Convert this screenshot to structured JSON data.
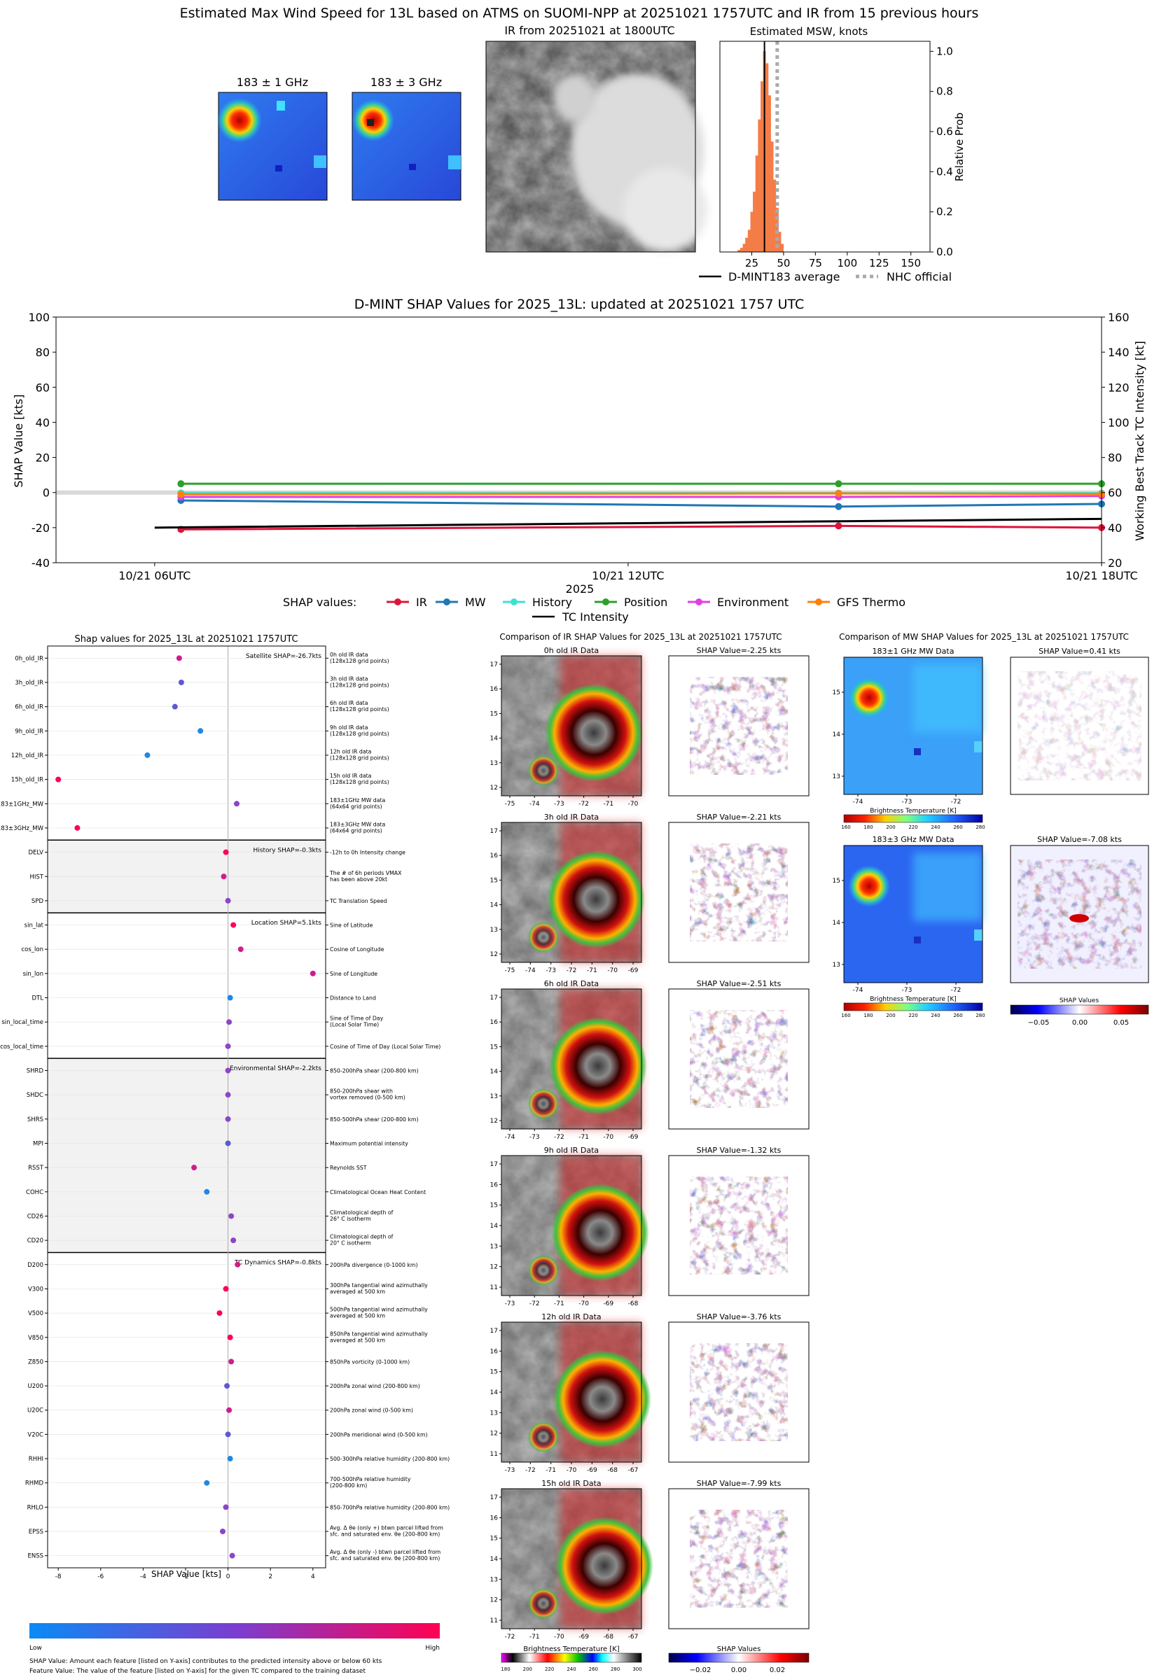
{
  "header": {
    "title": "Estimated Max Wind Speed for 13L based on ATMS on SUOMI-NPP at 20251021 1757UTC and IR from 15 previous hours",
    "mw_titles": [
      "183 ± 1 GHz",
      "183 ± 3 GHz"
    ],
    "ir_title": "IR from 20251021 at 1800UTC"
  },
  "hist": {
    "title": "Estimated MSW, knots",
    "ylabel": "Relative Prob",
    "xticks": [
      "25",
      "50",
      "75",
      "100",
      "125",
      "150"
    ],
    "yticks": [
      "0.0",
      "0.2",
      "0.4",
      "0.6",
      "0.8",
      "1.0"
    ],
    "legend": [
      "D-MINT183 average",
      "NHC official"
    ]
  },
  "chart_data": [
    {
      "type": "bar",
      "title": "Estimated MSW, knots",
      "ylabel": "Relative Prob",
      "xlim": [
        0,
        165
      ],
      "ylim": [
        0,
        1.05
      ],
      "bin_width": 2,
      "x": [
        15,
        17,
        19,
        21,
        23,
        25,
        27,
        29,
        31,
        33,
        35,
        37,
        39,
        41,
        43,
        45,
        47,
        49
      ],
      "values": [
        0.01,
        0.02,
        0.04,
        0.07,
        0.11,
        0.2,
        0.3,
        0.48,
        0.66,
        0.85,
        1.0,
        0.94,
        0.78,
        0.55,
        0.36,
        0.22,
        0.1,
        0.04
      ],
      "average": 35,
      "nhc_official": 45
    },
    {
      "type": "line",
      "title": "D-MINT SHAP Values for 2025_13L: updated at 20251021 1757 UTC",
      "xlabel": "2025",
      "ylabel": "SHAP Value [kts]",
      "y2label": "Working Best Track TC Intensity [kt]",
      "xticks": [
        "10/21 06UTC",
        "10/21 12UTC",
        "10/21 18UTC"
      ],
      "xlim": [
        4.75,
        18
      ],
      "ylim": [
        -40,
        100
      ],
      "y2lim": [
        20,
        160
      ],
      "yticks": [
        "-40",
        "-20",
        "0",
        "20",
        "40",
        "60",
        "80",
        "100"
      ],
      "y2ticks": [
        "20",
        "40",
        "60",
        "80",
        "100",
        "120",
        "140",
        "160"
      ],
      "legend_label": "SHAP values:",
      "series": [
        {
          "name": "IR",
          "color": "#dc143c",
          "x": [
            6.333,
            14.667,
            18
          ],
          "values": [
            -21,
            -19,
            -20
          ]
        },
        {
          "name": "MW",
          "color": "#1f77b4",
          "x": [
            6.333,
            14.667,
            18
          ],
          "values": [
            -4.5,
            -8,
            -6.5
          ]
        },
        {
          "name": "History",
          "color": "#40e0d0",
          "x": [
            6.333,
            14.667,
            18
          ],
          "values": [
            -0.2,
            -0.3,
            -0.3
          ]
        },
        {
          "name": "Position",
          "color": "#2ca02c",
          "x": [
            6.333,
            14.667,
            18
          ],
          "values": [
            5,
            5,
            5
          ]
        },
        {
          "name": "Environment",
          "color": "#e040e0",
          "x": [
            6.333,
            14.667,
            18
          ],
          "values": [
            -2.5,
            -2.5,
            -2
          ]
        },
        {
          "name": "GFS Thermo",
          "color": "#ff7f0e",
          "x": [
            6.333,
            14.667,
            18
          ],
          "values": [
            -1,
            -0.5,
            -0.8
          ]
        }
      ],
      "intensity": {
        "name": "TC Intensity",
        "color": "#000000",
        "x": [
          6,
          12,
          18
        ],
        "values": [
          40,
          42.5,
          45
        ]
      }
    },
    {
      "type": "scatter",
      "title": "Shap values for 2025_13L at 20251021 1757UTC",
      "xlabel": "SHAP Value [kts]",
      "xlim": [
        -8.5,
        4.6
      ],
      "xticks": [
        "-8",
        "-6",
        "-4",
        "-2",
        "0",
        "2",
        "4"
      ],
      "features": [
        {
          "name": "0h_old_IR",
          "desc": [
            "0h old IR data",
            "(128x128 grid points)"
          ],
          "value": -2.3,
          "color": "#d01c8b"
        },
        {
          "name": "3h_old_IR",
          "desc": [
            "3h old IR data",
            "(128x128 grid points)"
          ],
          "value": -2.2,
          "color": "#5e58d8"
        },
        {
          "name": "6h_old_IR",
          "desc": [
            "6h old IR data",
            "(128x128 grid points)"
          ],
          "value": -2.5,
          "color": "#5e58d8"
        },
        {
          "name": "9h_old_IR",
          "desc": [
            "9h old IR data",
            "(128x128 grid points)"
          ],
          "value": -1.3,
          "color": "#1e88e5"
        },
        {
          "name": "12h_old_IR",
          "desc": [
            "12h old IR data",
            "(128x128 grid points)"
          ],
          "value": -3.8,
          "color": "#1e88e5"
        },
        {
          "name": "15h_old_IR",
          "desc": [
            "15h old IR data",
            "(128x128 grid points)"
          ],
          "value": -8.0,
          "color": "#ff0052"
        },
        {
          "name": "183±1GHz_MW",
          "desc": [
            "183±1GHz MW data",
            "(64x64 grid points)"
          ],
          "value": 0.41,
          "color": "#8e44c8"
        },
        {
          "name": "183±3GHz_MW",
          "desc": [
            "183±3GHz MW data",
            "(64x64 grid points)"
          ],
          "value": -7.1,
          "color": "#ff0052"
        },
        {
          "name": "DELV",
          "desc": [
            "-12h to 0h Intensity change"
          ],
          "value": -0.1,
          "color": "#ff0052"
        },
        {
          "name": "HIST",
          "desc": [
            "The # of 6h periods VMAX",
            "has been above 20kt"
          ],
          "value": -0.2,
          "color": "#d01c8b"
        },
        {
          "name": "SPD",
          "desc": [
            "TC Translation Speed"
          ],
          "value": 0.0,
          "color": "#8e44c8"
        },
        {
          "name": "sin_lat",
          "desc": [
            "Sine of Latitude"
          ],
          "value": 0.25,
          "color": "#ff0052"
        },
        {
          "name": "cos_lon",
          "desc": [
            "Cosine of Longitude"
          ],
          "value": 0.6,
          "color": "#d01c8b"
        },
        {
          "name": "sin_lon",
          "desc": [
            "Sine of Longitude"
          ],
          "value": 4.0,
          "color": "#d01c8b"
        },
        {
          "name": "DTL",
          "desc": [
            "Distance to Land"
          ],
          "value": 0.1,
          "color": "#1e88e5"
        },
        {
          "name": "sin_local_time",
          "desc": [
            "Sine of Time of Day",
            "(Local Solar Time)"
          ],
          "value": 0.05,
          "color": "#8e44c8"
        },
        {
          "name": "cos_local_time",
          "desc": [
            "Cosine of Time of Day (Local Solar Time)"
          ],
          "value": 0.0,
          "color": "#8e44c8"
        },
        {
          "name": "SHRD",
          "desc": [
            "850-200hPa shear (200-800 km)"
          ],
          "value": 0.0,
          "color": "#8e44c8"
        },
        {
          "name": "SHDC",
          "desc": [
            "850-200hPa shear with",
            "vortex removed (0-500 km)"
          ],
          "value": 0.0,
          "color": "#8e44c8"
        },
        {
          "name": "SHRS",
          "desc": [
            "850-500hPa shear (200-800 km)"
          ],
          "value": 0.0,
          "color": "#8e44c8"
        },
        {
          "name": "MPI",
          "desc": [
            "Maximum potential intensity"
          ],
          "value": 0.0,
          "color": "#5e58d8"
        },
        {
          "name": "RSST",
          "desc": [
            "Reynolds SST"
          ],
          "value": -1.6,
          "color": "#d01c8b"
        },
        {
          "name": "COHC",
          "desc": [
            "Climatological Ocean Heat Content"
          ],
          "value": -1.0,
          "color": "#1e88e5"
        },
        {
          "name": "CD26",
          "desc": [
            "Climatological depth of",
            "26° C isotherm"
          ],
          "value": 0.15,
          "color": "#8e44c8"
        },
        {
          "name": "CD20",
          "desc": [
            "Climatological depth of",
            "20° C isotherm"
          ],
          "value": 0.25,
          "color": "#8e44c8"
        },
        {
          "name": "D200",
          "desc": [
            "200hPa divergence (0-1000 km)"
          ],
          "value": 0.45,
          "color": "#d01c8b"
        },
        {
          "name": "V300",
          "desc": [
            "300hPa tangential wind azimuthally",
            "averaged at 500 km"
          ],
          "value": -0.1,
          "color": "#ff0052"
        },
        {
          "name": "V500",
          "desc": [
            "500hPa tangential wind azimuthally",
            "averaged at 500 km"
          ],
          "value": -0.4,
          "color": "#ff0052"
        },
        {
          "name": "V850",
          "desc": [
            "850hPa tangential wind azimuthally",
            "averaged at 500 km"
          ],
          "value": 0.1,
          "color": "#ff0052"
        },
        {
          "name": "Z850",
          "desc": [
            "850hPa vorticity (0-1000 km)"
          ],
          "value": 0.15,
          "color": "#d01c8b"
        },
        {
          "name": "U200",
          "desc": [
            "200hPa zonal wind (200-800 km)"
          ],
          "value": -0.05,
          "color": "#5e58d8"
        },
        {
          "name": "U20C",
          "desc": [
            "200hPa zonal wind (0-500 km)"
          ],
          "value": 0.05,
          "color": "#d01c8b"
        },
        {
          "name": "V20C",
          "desc": [
            "200hPa meridional wind (0-500 km)"
          ],
          "value": 0.0,
          "color": "#5e58d8"
        },
        {
          "name": "RHHI",
          "desc": [
            "500-300hPa relative humidity (200-800 km)"
          ],
          "value": 0.1,
          "color": "#1e88e5"
        },
        {
          "name": "RHMD",
          "desc": [
            "700-500hPa relative humidity",
            "(200-800 km)"
          ],
          "value": -1.0,
          "color": "#1e88e5"
        },
        {
          "name": "RHLO",
          "desc": [
            "850-700hPa relative humidity (200-800 km)"
          ],
          "value": -0.1,
          "color": "#8e44c8"
        },
        {
          "name": "EPSS",
          "desc": [
            "Avg. Δ θe (only +) btwn parcel lifted from",
            "sfc. and saturated env. θe (200-800 km)"
          ],
          "value": -0.25,
          "color": "#8e44c8"
        },
        {
          "name": "ENSS",
          "desc": [
            "Avg. Δ θe (only -) btwn parcel lifted from",
            "sfc. and saturated env. θe (200-800 km)"
          ],
          "value": 0.2,
          "color": "#8e44c8"
        }
      ],
      "groups": [
        {
          "label": "Satellite SHAP=-26.7kts",
          "start": 0,
          "end": 7,
          "shaded": false
        },
        {
          "label": "History SHAP=-0.3kts",
          "start": 8,
          "end": 10,
          "shaded": true
        },
        {
          "label": "Location SHAP=5.1kts",
          "start": 11,
          "end": 16,
          "shaded": false
        },
        {
          "label": "Environmental SHAP=-2.2kts",
          "start": 17,
          "end": 24,
          "shaded": true
        },
        {
          "label": "TC Dynamics SHAP=-0.8kts",
          "start": 25,
          "end": 37,
          "shaded": false
        }
      ]
    }
  ],
  "shap_bottom": {
    "colorbar_low": "Low",
    "colorbar_high": "High",
    "note1": "SHAP Value: Amount each feature [listed on Y-axis] contributes to the predicted intensity above or below 60 kts",
    "note2": "Feature Value: The value of the feature [listed on Y-axis] for the given TC compared to the training dataset"
  },
  "ir_comp": {
    "title": "Comparison of IR SHAP Values for 2025_13L at 20251021 1757UTC",
    "rows": [
      {
        "data_title": "0h old IR Data",
        "shap_title": "SHAP Value=-2.25 kts",
        "xticks": [
          "-75",
          "-74",
          "-73",
          "-72",
          "-71",
          "-70"
        ],
        "yticks": [
          "17",
          "16",
          "15",
          "14",
          "13",
          "12"
        ]
      },
      {
        "data_title": "3h old IR Data",
        "shap_title": "SHAP Value=-2.21 kts",
        "xticks": [
          "-75",
          "-74",
          "-73",
          "-72",
          "-71",
          "-70",
          "-69"
        ],
        "yticks": [
          "17",
          "16",
          "15",
          "14",
          "13",
          "12"
        ]
      },
      {
        "data_title": "6h old IR Data",
        "shap_title": "SHAP Value=-2.51 kts",
        "xticks": [
          "-74",
          "-73",
          "-72",
          "-71",
          "-70",
          "-69"
        ],
        "yticks": [
          "17",
          "16",
          "15",
          "14",
          "13",
          "12"
        ]
      },
      {
        "data_title": "9h old IR Data",
        "shap_title": "SHAP Value=-1.32 kts",
        "xticks": [
          "-73",
          "-72",
          "-71",
          "-70",
          "-69",
          "-68"
        ],
        "yticks": [
          "17",
          "16",
          "15",
          "14",
          "13",
          "12",
          "11"
        ]
      },
      {
        "data_title": "12h old IR Data",
        "shap_title": "SHAP Value=-3.76 kts",
        "xticks": [
          "-73",
          "-72",
          "-71",
          "-70",
          "-69",
          "-68",
          "-67"
        ],
        "yticks": [
          "17",
          "16",
          "15",
          "14",
          "13",
          "12",
          "11"
        ]
      },
      {
        "data_title": "15h old IR Data",
        "shap_title": "SHAP Value=-7.99 kts",
        "xticks": [
          "-72",
          "-71",
          "-70",
          "-69",
          "-68",
          "-67"
        ],
        "yticks": [
          "17",
          "16",
          "15",
          "14",
          "13",
          "12",
          "11"
        ]
      }
    ],
    "cbar_label": "Brightness Temperature [K]",
    "cbar_ticks": [
      "180",
      "200",
      "220",
      "240",
      "260",
      "280",
      "300"
    ],
    "shap_cbar_label": "SHAP Values",
    "shap_cbar_ticks": [
      "−0.02",
      "0.00",
      "0.02"
    ]
  },
  "mw_comp": {
    "title": "Comparison of MW SHAP Values for 2025_13L at 20251021 1757UTC",
    "rows": [
      {
        "data_title": "183±1 GHz MW Data",
        "shap_title": "SHAP Value=0.41 kts"
      },
      {
        "data_title": "183±3 GHz MW Data",
        "shap_title": "SHAP Value=-7.08 kts"
      }
    ],
    "xticks": [
      "-74",
      "-73",
      "-72"
    ],
    "yticks": [
      "15",
      "14",
      "13"
    ],
    "cbar_label": "Brightness Temperature [K]",
    "cbar_ticks": [
      "160",
      "180",
      "200",
      "220",
      "240",
      "260",
      "280"
    ],
    "shap_cbar_label": "SHAP Values",
    "shap_cbar_ticks": [
      "−0.05",
      "0.00",
      "0.05"
    ]
  }
}
